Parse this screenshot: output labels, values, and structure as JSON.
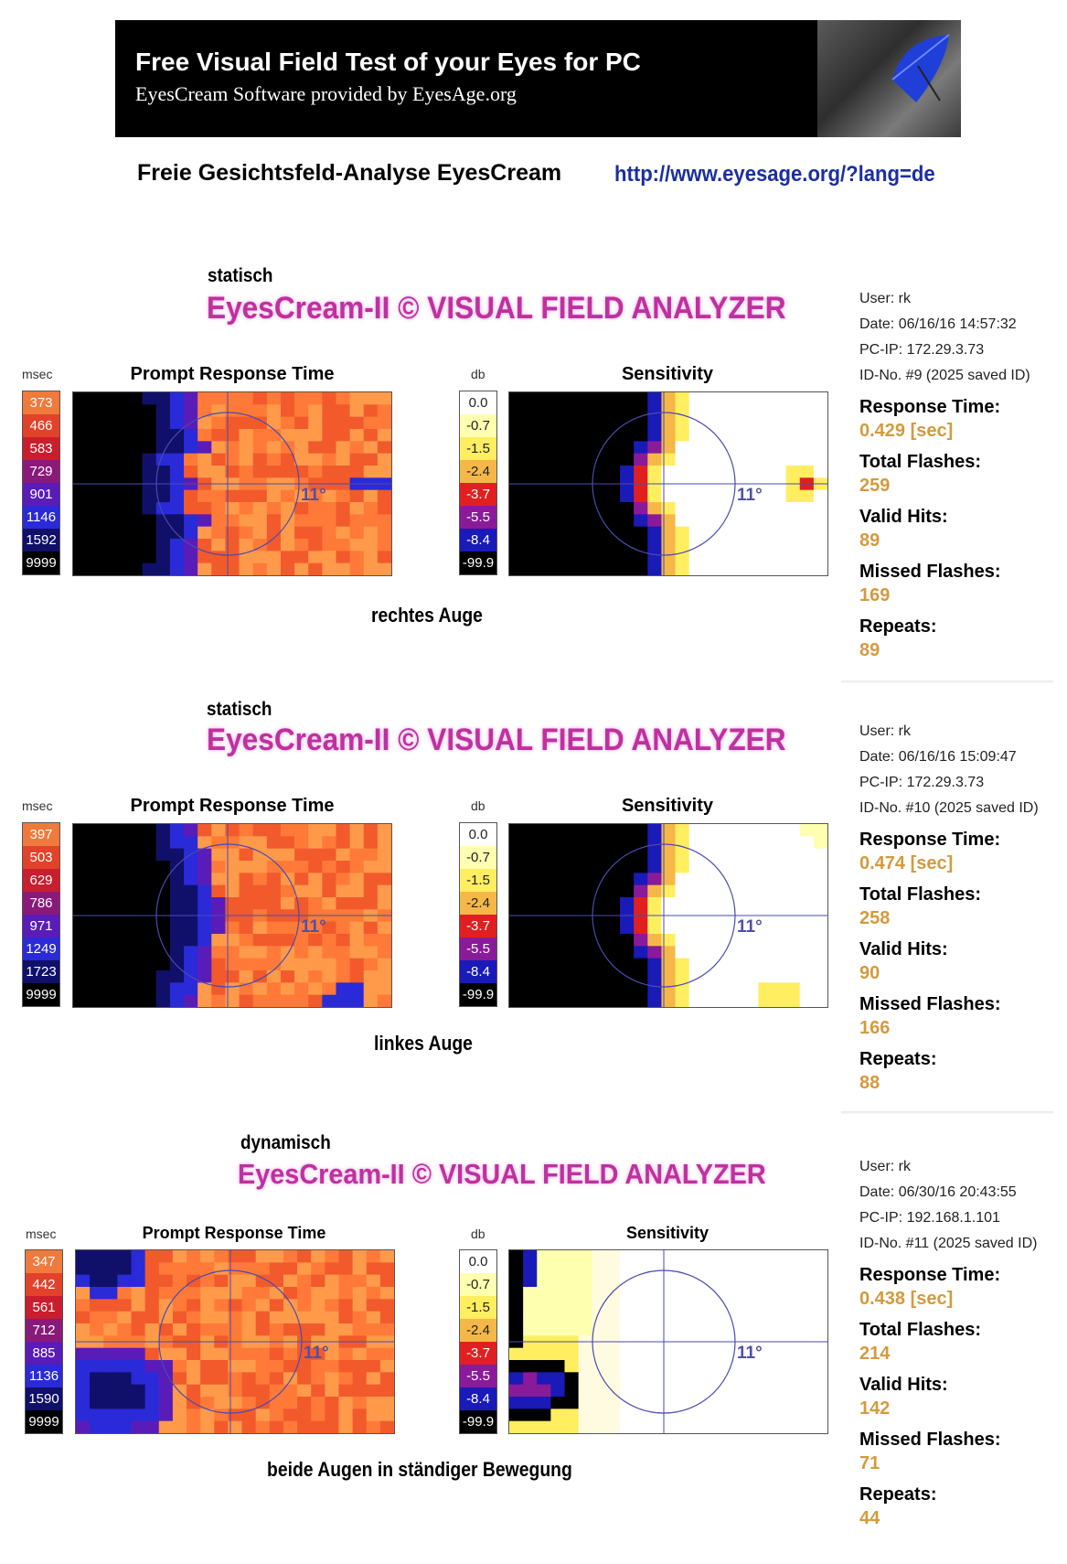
{
  "banner": {
    "title": "Free Visual Field Test of your Eyes for PC",
    "subtitle": "EyesCream Software provided by EyesAge.org"
  },
  "header": {
    "text": "Freie Gesichtsfeld-Analyse EyesCream",
    "link": "http://www.eyesage.org/?lang=de"
  },
  "brand": "EyesCream-II © VISUAL FIELD ANALYZER",
  "labels": {
    "msec": "msec",
    "db": "db",
    "prompt_response_time": "Prompt Response Time",
    "sensitivity": "Sensitivity",
    "angle": "11°",
    "response_time": "Response Time:",
    "total_flashes": "Total Flashes:",
    "valid_hits": "Valid Hits:",
    "missed_flashes": "Missed Flashes:",
    "repeats": "Repeats:"
  },
  "db_legend": [
    "0.0",
    "-0.7",
    "-1.5",
    "-2.4",
    "-3.7",
    "-5.5",
    "-8.4",
    "-99.9"
  ],
  "colors": {
    "legend_rt": [
      "#f07a3c",
      "#e2422a",
      "#c81e2e",
      "#8a1a7a",
      "#5a1cb8",
      "#2a2ad8",
      "#10106a",
      "#000000"
    ],
    "legend_db": [
      "#ffffff",
      "#ffffb0",
      "#ffee60",
      "#f5b848",
      "#e02020",
      "#8a1a9a",
      "#1a1ab8",
      "#000000"
    ],
    "accent": "#c030a0",
    "value": "#d49a3e"
  },
  "tests": [
    {
      "mode": "statisch",
      "eye_label": "rechtes Auge",
      "rt_legend": [
        "373",
        "466",
        "583",
        "729",
        "901",
        "1146",
        "1592",
        "9999"
      ],
      "user": "User: rk",
      "date": "Date: 06/16/16 14:57:32",
      "pcip": "PC-IP: 172.29.3.73",
      "idno": "ID-No. #9 (2025 saved ID)",
      "response_time": "0.429 [sec]",
      "total_flashes": "259",
      "valid_hits": "89",
      "missed_flashes": "169",
      "repeats": "89"
    },
    {
      "mode": "statisch",
      "eye_label": "linkes Auge",
      "rt_legend": [
        "397",
        "503",
        "629",
        "786",
        "971",
        "1249",
        "1723",
        "9999"
      ],
      "user": "User: rk",
      "date": "Date: 06/16/16 15:09:47",
      "pcip": "PC-IP: 172.29.3.73",
      "idno": "ID-No. #10 (2025 saved ID)",
      "response_time": "0.474 [sec]",
      "total_flashes": "258",
      "valid_hits": "90",
      "missed_flashes": "166",
      "repeats": "88"
    },
    {
      "mode": "dynamisch",
      "eye_label": "beide Augen in ständiger Bewegung",
      "rt_legend": [
        "347",
        "442",
        "561",
        "712",
        "885",
        "1136",
        "1590",
        "9999"
      ],
      "user": "User: rk",
      "date": "Date: 06/30/16 20:43:55",
      "pcip": "PC-IP: 192.168.1.101",
      "idno": "ID-No. #11 (2025 saved ID)",
      "response_time": "0.438 [sec]",
      "total_flashes": "214",
      "valid_hits": "142",
      "missed_flashes": "71",
      "repeats": "44"
    }
  ]
}
